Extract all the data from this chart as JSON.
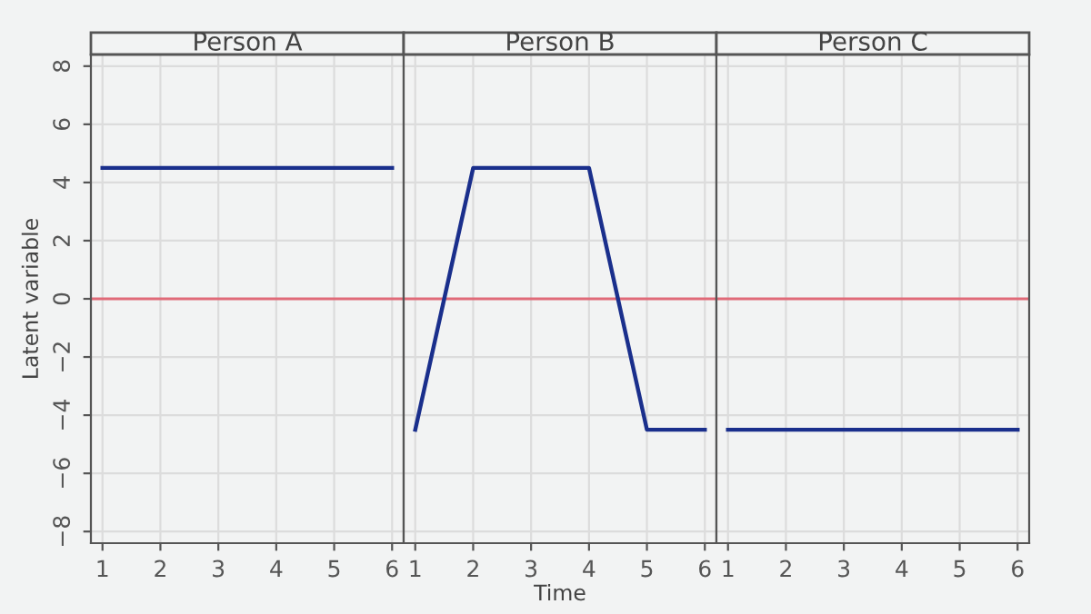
{
  "chart_data": [
    {
      "type": "line",
      "title": "Person A",
      "ylabel": "Latent variable",
      "x": [
        1,
        2,
        3,
        4,
        5,
        6
      ],
      "series": [
        {
          "color": "#1a2f8c",
          "values": [
            4.5,
            4.5,
            4.5,
            4.5,
            4.5,
            4.5
          ]
        }
      ],
      "xlim": [
        0.8,
        6.2
      ],
      "xticks": [
        1,
        2,
        3,
        4,
        5,
        6
      ],
      "ylim": [
        -8.4,
        8.4
      ],
      "yticks": [
        -8,
        -6,
        -4,
        -2,
        0,
        2,
        4,
        6,
        8
      ],
      "grid": true,
      "ref_lines": [
        {
          "axis": "y",
          "value": 0,
          "color": "#e06a78"
        }
      ]
    },
    {
      "type": "line",
      "title": "Person B",
      "xlabel": "Time",
      "x": [
        1,
        2,
        3,
        4,
        5,
        6
      ],
      "series": [
        {
          "color": "#1a2f8c",
          "values": [
            -4.5,
            4.5,
            4.5,
            4.5,
            -4.5,
            -4.5
          ]
        }
      ],
      "xlim": [
        0.8,
        6.2
      ],
      "xticks": [
        1,
        2,
        3,
        4,
        5,
        6
      ],
      "ylim": [
        -8.4,
        8.4
      ],
      "grid": true,
      "tick_labels": "x",
      "ref_lines": [
        {
          "axis": "y",
          "value": 0,
          "color": "#e06a78"
        }
      ]
    },
    {
      "type": "line",
      "title": "Person C",
      "x": [
        1,
        2,
        3,
        4,
        5,
        6
      ],
      "series": [
        {
          "color": "#1a2f8c",
          "values": [
            -4.5,
            -4.5,
            -4.5,
            -4.5,
            -4.5,
            -4.5
          ]
        }
      ],
      "xlim": [
        0.8,
        6.2
      ],
      "xticks": [
        1,
        2,
        3,
        4,
        5,
        6
      ],
      "ylim": [
        -8.4,
        8.4
      ],
      "grid": true,
      "tick_labels": "x",
      "ref_lines": [
        {
          "axis": "y",
          "value": 0,
          "color": "#e06a78"
        }
      ]
    }
  ]
}
